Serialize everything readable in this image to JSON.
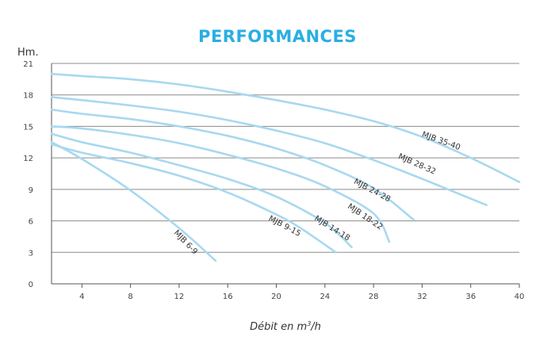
{
  "chart_data": {
    "type": "line",
    "title": "PERFORMANCES",
    "ylabel": "Hm.",
    "xlabel_prefix": "Débit en m",
    "xlabel_sup": "3",
    "xlabel_suffix": "/h",
    "xlim": [
      1.5,
      40
    ],
    "ylim": [
      0,
      21
    ],
    "xticks": [
      4,
      8,
      12,
      16,
      20,
      24,
      28,
      32,
      36,
      40
    ],
    "yticks": [
      0,
      3,
      6,
      9,
      12,
      15,
      18,
      21
    ],
    "grid": "horizontal",
    "line_color": "#a8d8f0",
    "series": [
      {
        "name": "MJB 6-9",
        "label_at": [
          12.4,
          3.8
        ],
        "label_angle": 46,
        "x": [
          1.5,
          4,
          8,
          12,
          15
        ],
        "y": [
          13.5,
          11.9,
          8.9,
          5.3,
          2.2
        ]
      },
      {
        "name": "MJB 9-15",
        "label_at": [
          20.6,
          5.3
        ],
        "label_angle": 28,
        "x": [
          1.5,
          4,
          8,
          12,
          16,
          20,
          22,
          24.9
        ],
        "y": [
          13.3,
          12.5,
          11.5,
          10.3,
          8.7,
          6.6,
          5.3,
          3.0
        ]
      },
      {
        "name": "MJB 14-18",
        "label_at": [
          24.5,
          5.1
        ],
        "label_angle": 32,
        "x": [
          1.5,
          4,
          8,
          12,
          16,
          20,
          24,
          26.2
        ],
        "y": [
          14.3,
          13.5,
          12.5,
          11.3,
          10.0,
          8.3,
          5.8,
          3.5
        ]
      },
      {
        "name": "MJB 18-22",
        "label_at": [
          27.2,
          6.2
        ],
        "label_angle": 34,
        "x": [
          1.5,
          4,
          8,
          12,
          16,
          20,
          24,
          28,
          29.3
        ],
        "y": [
          15.0,
          14.8,
          14.2,
          13.4,
          12.3,
          11.0,
          9.3,
          6.7,
          4.0
        ]
      },
      {
        "name": "MJB 24-28",
        "label_at": [
          27.8,
          8.7
        ],
        "label_angle": 28,
        "x": [
          1.5,
          4,
          8,
          12,
          16,
          20,
          24,
          28,
          31.3
        ],
        "y": [
          16.6,
          16.2,
          15.7,
          15.0,
          14.1,
          12.9,
          11.3,
          9.1,
          6.1
        ]
      },
      {
        "name": "MJB 28-32",
        "label_at": [
          31.5,
          11.2
        ],
        "label_angle": 24,
        "x": [
          1.5,
          4,
          8,
          12,
          16,
          20,
          24,
          28,
          32,
          37.3
        ],
        "y": [
          17.8,
          17.5,
          17.0,
          16.4,
          15.6,
          14.6,
          13.4,
          11.8,
          10.0,
          7.5
        ]
      },
      {
        "name": "MJB 35-40",
        "label_at": [
          33.5,
          13.4
        ],
        "label_angle": 20,
        "x": [
          1.5,
          4,
          8,
          12,
          16,
          20,
          24,
          28,
          32,
          36,
          40
        ],
        "y": [
          20.0,
          19.8,
          19.5,
          19.0,
          18.3,
          17.5,
          16.6,
          15.5,
          14.0,
          12.0,
          9.7
        ]
      }
    ]
  }
}
